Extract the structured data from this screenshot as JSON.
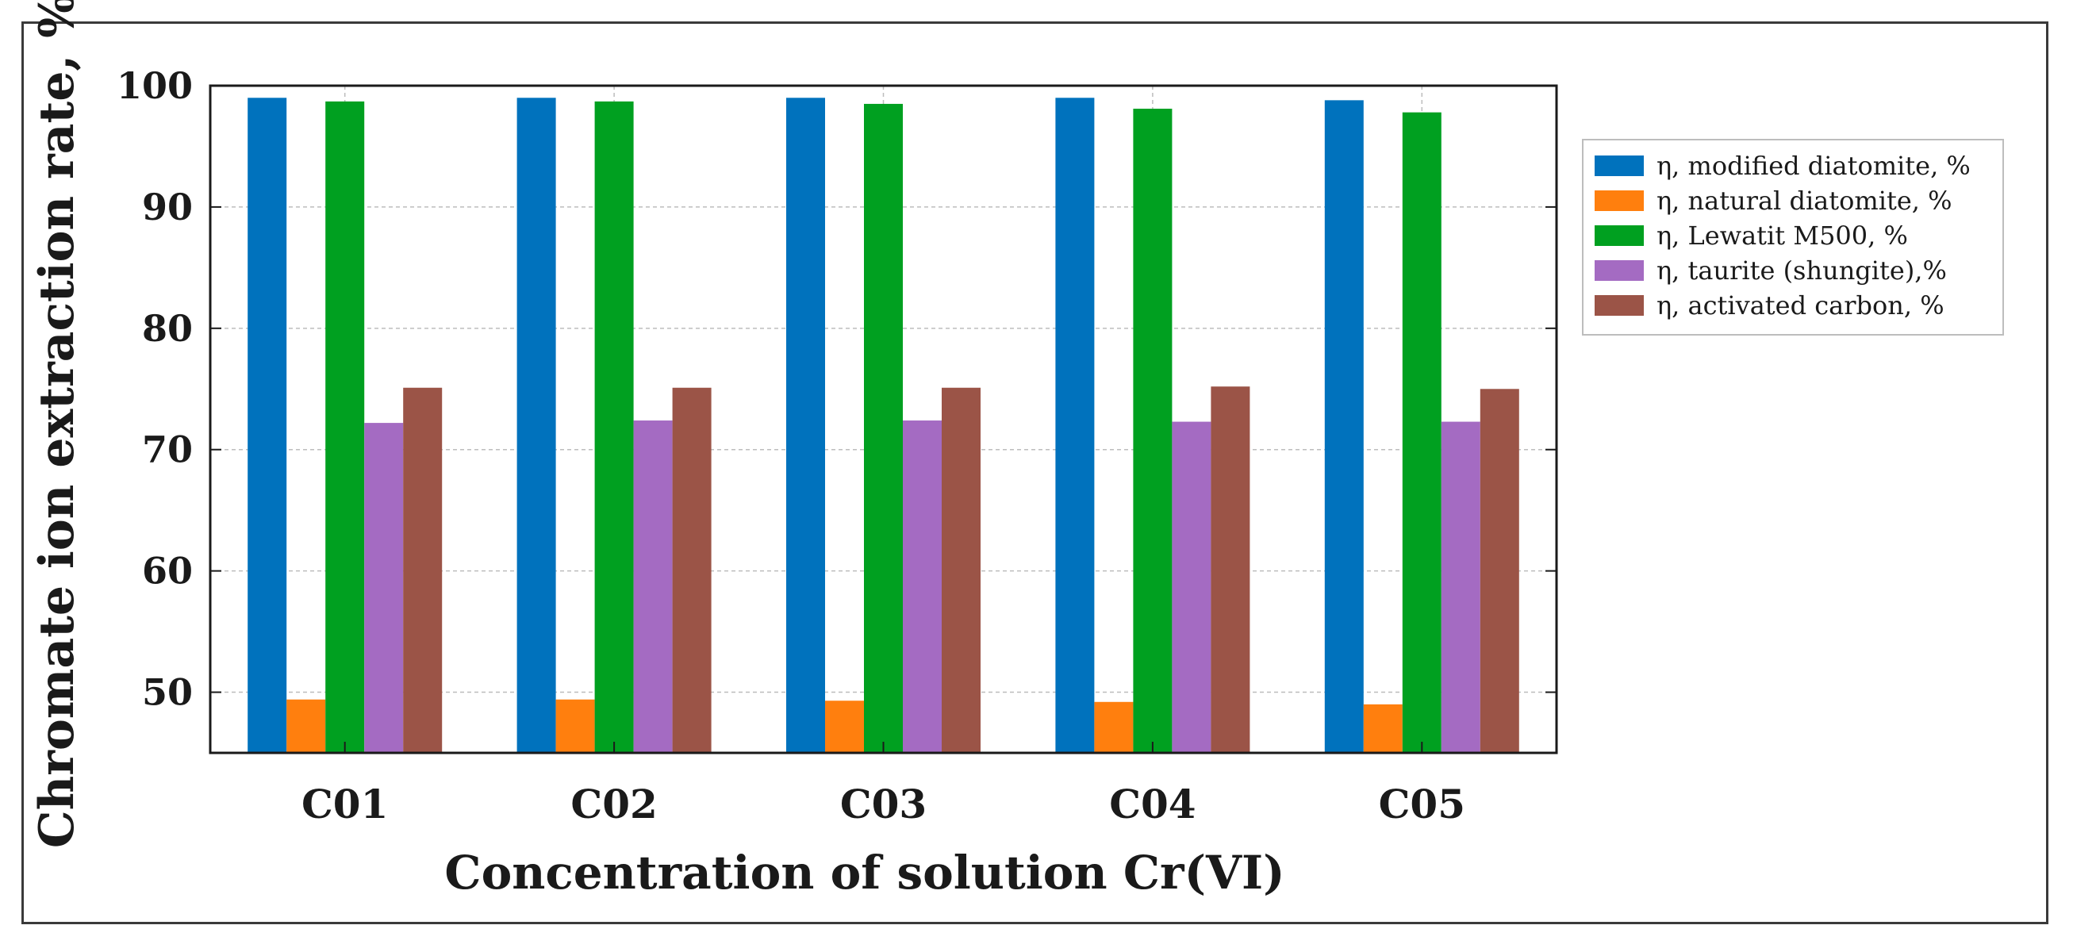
{
  "chart_data": {
    "type": "bar",
    "title": "",
    "xlabel": "Concentration of solution Cr(VI)",
    "ylabel": "Chromate ion extraction rate, %",
    "categories": [
      "C01",
      "C02",
      "C03",
      "C04",
      "C05"
    ],
    "ylim": [
      45,
      100
    ],
    "yticks": [
      50,
      60,
      70,
      80,
      90,
      100
    ],
    "grid": true,
    "legend_position": "right",
    "series": [
      {
        "name": "η, modified diatomite, %",
        "color": "#0072bd",
        "values": [
          99.0,
          99.0,
          99.0,
          99.0,
          98.8
        ]
      },
      {
        "name": "η, natural diatomite, %",
        "color": "#ff7f0e",
        "values": [
          49.4,
          49.4,
          49.3,
          49.2,
          49.0
        ]
      },
      {
        "name": "η, Lewatit M500, %",
        "color": "#00a020",
        "values": [
          98.7,
          98.7,
          98.5,
          98.1,
          97.8
        ]
      },
      {
        "name": "η, taurite (shungite),%",
        "color": "#a46bc2",
        "values": [
          72.2,
          72.4,
          72.4,
          72.3,
          72.3
        ]
      },
      {
        "name": "η, activated carbon, %",
        "color": "#9b5447",
        "values": [
          75.1,
          75.1,
          75.1,
          75.2,
          75.0
        ]
      }
    ]
  }
}
